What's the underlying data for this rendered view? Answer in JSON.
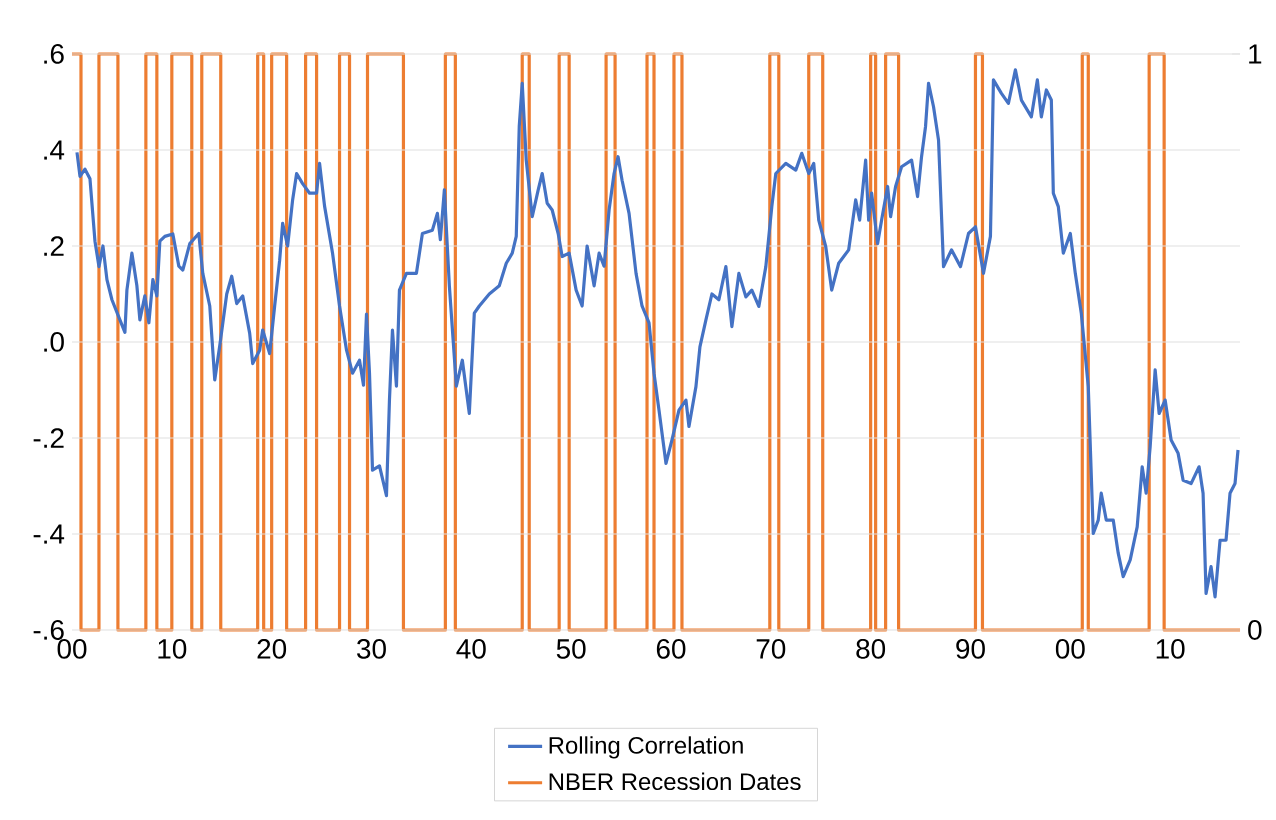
{
  "chart_data": {
    "type": "line",
    "xlim": [
      1900,
      2017
    ],
    "xticks": [
      {
        "value": 1900,
        "label": "00"
      },
      {
        "value": 1910,
        "label": "10"
      },
      {
        "value": 1920,
        "label": "20"
      },
      {
        "value": 1930,
        "label": "30"
      },
      {
        "value": 1940,
        "label": "40"
      },
      {
        "value": 1950,
        "label": "50"
      },
      {
        "value": 1960,
        "label": "60"
      },
      {
        "value": 1970,
        "label": "70"
      },
      {
        "value": 1980,
        "label": "80"
      },
      {
        "value": 1990,
        "label": "90"
      },
      {
        "value": 2000,
        "label": "00"
      },
      {
        "value": 2010,
        "label": "10"
      }
    ],
    "ylim": [
      -0.6,
      0.6
    ],
    "yticks": [
      {
        "value": 0.6,
        "label": ".6"
      },
      {
        "value": 0.4,
        "label": ".4"
      },
      {
        "value": 0.2,
        "label": ".2"
      },
      {
        "value": 0.0,
        "label": ".0"
      },
      {
        "value": -0.2,
        "label": "-.2"
      },
      {
        "value": -0.4,
        "label": "-.4"
      },
      {
        "value": -0.6,
        "label": "-.6"
      }
    ],
    "y2lim": [
      0,
      1
    ],
    "y2ticks": [
      0,
      1
    ],
    "grid": "y",
    "legend": "bottom",
    "series": [
      {
        "name": "Rolling Correlation",
        "color": "#4472c4",
        "x": [
          1900.5,
          1900.8,
          1901.3,
          1901.8,
          1902.3,
          1902.7,
          1903.1,
          1903.5,
          1904.0,
          1904.8,
          1905.3,
          1905.5,
          1906.0,
          1906.5,
          1906.8,
          1907.3,
          1907.7,
          1908.1,
          1908.5,
          1908.8,
          1909.3,
          1910.1,
          1910.7,
          1911.1,
          1911.8,
          1912.7,
          1913.1,
          1913.8,
          1914.3,
          1914.8,
          1915.5,
          1916.0,
          1916.5,
          1917.1,
          1917.8,
          1918.1,
          1918.8,
          1919.1,
          1919.8,
          1920.3,
          1920.8,
          1921.1,
          1921.6,
          1922.1,
          1922.5,
          1923.1,
          1923.8,
          1924.5,
          1924.8,
          1925.3,
          1926.1,
          1926.8,
          1927.5,
          1928.1,
          1928.8,
          1929.2,
          1929.5,
          1929.8,
          1930.1,
          1930.8,
          1931.5,
          1931.8,
          1932.1,
          1932.5,
          1932.8,
          1933.5,
          1934.5,
          1935.1,
          1936.1,
          1936.6,
          1936.9,
          1937.3,
          1937.8,
          1938.5,
          1939.1,
          1939.8,
          1940.3,
          1940.8,
          1941.8,
          1942.8,
          1943.5,
          1944.1,
          1944.5,
          1944.8,
          1945.1,
          1945.5,
          1946.1,
          1946.7,
          1947.1,
          1947.6,
          1948.1,
          1948.7,
          1949.1,
          1949.8,
          1950.5,
          1951.1,
          1951.6,
          1952.3,
          1952.8,
          1953.3,
          1953.8,
          1954.3,
          1954.7,
          1955.1,
          1955.8,
          1956.5,
          1957.1,
          1957.8,
          1958.3,
          1958.8,
          1959.5,
          1960.1,
          1960.8,
          1961.5,
          1961.8,
          1962.5,
          1962.9,
          1963.5,
          1964.1,
          1964.8,
          1965.5,
          1966.1,
          1966.8,
          1967.5,
          1968.1,
          1968.8,
          1969.5,
          1970.1,
          1970.5,
          1971.5,
          1972.5,
          1973.1,
          1973.8,
          1974.3,
          1974.8,
          1975.5,
          1976.1,
          1976.8,
          1977.8,
          1978.5,
          1978.9,
          1979.5,
          1979.8,
          1980.1,
          1980.7,
          1981.1,
          1981.7,
          1982.0,
          1982.5,
          1983.1,
          1984.1,
          1984.7,
          1985.1,
          1985.5,
          1985.8,
          1986.3,
          1986.8,
          1987.3,
          1988.1,
          1989.0,
          1989.8,
          1990.5,
          1991.3,
          1992.0,
          1992.3,
          1993.1,
          1993.8,
          1994.5,
          1995.1,
          1996.1,
          1996.7,
          1997.1,
          1997.6,
          1998.1,
          1998.3,
          1998.8,
          1999.3,
          2000.0,
          2000.5,
          2001.1,
          2001.8,
          2002.3,
          2002.8,
          2003.1,
          2003.6,
          2004.3,
          2004.8,
          2005.3,
          2006.0,
          2006.7,
          2007.2,
          2007.6,
          2008.0,
          2008.5,
          2008.9,
          2009.5,
          2010.1,
          2010.8,
          2011.3,
          2012.1,
          2012.9,
          2013.3,
          2013.6,
          2014.1,
          2014.5,
          2015.0,
          2015.6,
          2016.0,
          2016.5,
          2016.8
        ],
        "values": [
          0.395,
          0.345,
          0.36,
          0.34,
          0.21,
          0.157,
          0.2,
          0.13,
          0.088,
          0.046,
          0.02,
          0.108,
          0.185,
          0.117,
          0.046,
          0.096,
          0.04,
          0.13,
          0.096,
          0.21,
          0.22,
          0.225,
          0.158,
          0.15,
          0.205,
          0.226,
          0.143,
          0.075,
          -0.079,
          -0.008,
          0.1,
          0.137,
          0.08,
          0.096,
          0.018,
          -0.045,
          -0.017,
          0.025,
          -0.024,
          0.075,
          0.17,
          0.247,
          0.2,
          0.296,
          0.351,
          0.33,
          0.31,
          0.31,
          0.372,
          0.283,
          0.185,
          0.075,
          -0.017,
          -0.065,
          -0.038,
          -0.09,
          0.058,
          -0.065,
          -0.267,
          -0.258,
          -0.32,
          -0.121,
          0.025,
          -0.092,
          0.108,
          0.143,
          0.143,
          0.226,
          0.233,
          0.268,
          0.213,
          0.317,
          0.117,
          -0.092,
          -0.038,
          -0.149,
          0.06,
          0.075,
          0.1,
          0.117,
          0.164,
          0.185,
          0.22,
          0.449,
          0.539,
          0.379,
          0.261,
          0.317,
          0.351,
          0.289,
          0.275,
          0.226,
          0.178,
          0.185,
          0.108,
          0.075,
          0.2,
          0.117,
          0.185,
          0.158,
          0.275,
          0.351,
          0.386,
          0.337,
          0.268,
          0.143,
          0.075,
          0.04,
          -0.065,
          -0.142,
          -0.253,
          -0.204,
          -0.142,
          -0.121,
          -0.176,
          -0.093,
          -0.01,
          0.046,
          0.1,
          0.088,
          0.157,
          0.032,
          0.143,
          0.094,
          0.108,
          0.074,
          0.157,
          0.282,
          0.351,
          0.372,
          0.358,
          0.393,
          0.351,
          0.372,
          0.254,
          0.199,
          0.108,
          0.164,
          0.192,
          0.296,
          0.254,
          0.379,
          0.254,
          0.31,
          0.205,
          0.254,
          0.324,
          0.261,
          0.324,
          0.365,
          0.379,
          0.303,
          0.386,
          0.449,
          0.539,
          0.49,
          0.421,
          0.157,
          0.192,
          0.157,
          0.226,
          0.24,
          0.143,
          0.22,
          0.546,
          0.518,
          0.497,
          0.567,
          0.504,
          0.469,
          0.546,
          0.469,
          0.525,
          0.504,
          0.31,
          0.282,
          0.185,
          0.226,
          0.143,
          0.06,
          -0.093,
          -0.399,
          -0.371,
          -0.315,
          -0.371,
          -0.371,
          -0.44,
          -0.489,
          -0.454,
          -0.385,
          -0.26,
          -0.315,
          -0.218,
          -0.058,
          -0.149,
          -0.121,
          -0.204,
          -0.232,
          -0.288,
          -0.295,
          -0.26,
          -0.315,
          -0.524,
          -0.468,
          -0.531,
          -0.413,
          -0.413,
          -0.315,
          -0.295,
          -0.225
        ]
      },
      {
        "name": "NBER Recession Dates",
        "color": "#ed7d31",
        "type": "step",
        "axis": "y2",
        "x": [
          1900,
          1900.9,
          1902.7,
          1904.6,
          1907.4,
          1908.5,
          1910.0,
          1912.0,
          1913.0,
          1914.9,
          1918.6,
          1919.2,
          1920.0,
          1921.5,
          1923.4,
          1924.5,
          1926.8,
          1927.8,
          1929.6,
          1933.2,
          1937.4,
          1938.4,
          1945.1,
          1945.8,
          1948.8,
          1949.8,
          1953.5,
          1954.4,
          1957.6,
          1958.3,
          1960.3,
          1961.1,
          1969.9,
          1970.8,
          1973.8,
          1975.2,
          1980.0,
          1980.5,
          1981.5,
          1982.8,
          1990.5,
          1991.2,
          2001.2,
          2001.8,
          2007.9,
          2009.4,
          2017
        ],
        "values": [
          1,
          0,
          1,
          0,
          1,
          0,
          1,
          0,
          1,
          0,
          1,
          0,
          1,
          0,
          1,
          0,
          1,
          0,
          1,
          0,
          1,
          0,
          1,
          0,
          1,
          0,
          1,
          0,
          1,
          0,
          1,
          0,
          1,
          0,
          1,
          0,
          1,
          0,
          1,
          0,
          1,
          0,
          1,
          0,
          1,
          0,
          0
        ]
      }
    ]
  }
}
